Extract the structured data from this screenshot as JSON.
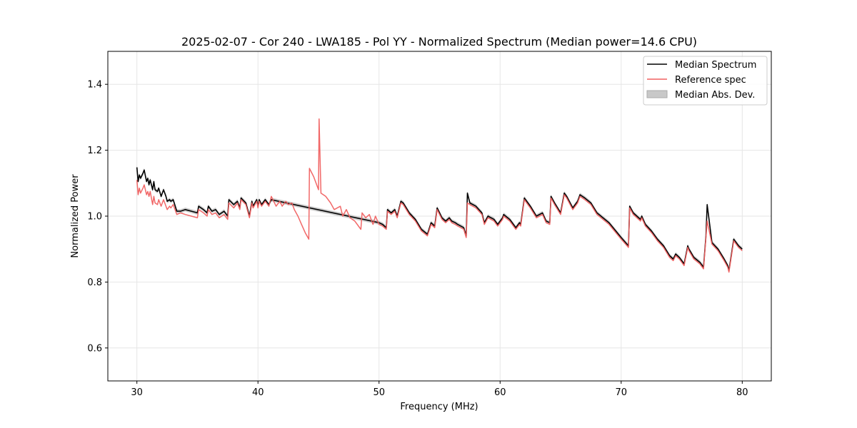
{
  "chart_data": {
    "type": "line",
    "title": "2025-02-07 - Cor 240 - LWA185 - Pol YY - Normalized Spectrum (Median power=14.6 CPU)",
    "xlabel": "Frequency (MHz)",
    "ylabel": "Normalized Power",
    "xlim": [
      27.6,
      82.4
    ],
    "ylim": [
      0.5,
      1.5
    ],
    "xticks": [
      30,
      40,
      50,
      60,
      70,
      80
    ],
    "yticks": [
      0.6,
      0.8,
      1.0,
      1.2,
      1.4
    ],
    "xtick_labels": [
      "30",
      "40",
      "50",
      "60",
      "70",
      "80"
    ],
    "ytick_labels": [
      "0.6",
      "0.8",
      "1.0",
      "1.2",
      "1.4"
    ],
    "grid": true,
    "legend_position": "top-right",
    "colors": {
      "median": "#000000",
      "reference": "#f06060",
      "mad": "#c8c8c8"
    },
    "series": [
      {
        "name": "Median Spectrum",
        "x": [
          30.0,
          30.1,
          30.2,
          30.3,
          30.5,
          30.6,
          30.8,
          30.9,
          31.0,
          31.1,
          31.3,
          31.4,
          31.5,
          31.7,
          31.8,
          32.0,
          32.2,
          32.4,
          32.5,
          32.7,
          32.8,
          33.0,
          33.3,
          33.6,
          34.0,
          34.5,
          35.0,
          35.1,
          35.5,
          35.8,
          35.9,
          36.2,
          36.5,
          36.8,
          37.2,
          37.5,
          37.6,
          38.0,
          38.3,
          38.5,
          38.6,
          39.0,
          39.3,
          39.5,
          39.6,
          39.9,
          40.0,
          40.1,
          40.3,
          40.6,
          40.9,
          41.1,
          50.0,
          50.3,
          50.6,
          50.7,
          51.0,
          51.3,
          51.5,
          51.8,
          52.0,
          52.5,
          53.0,
          53.5,
          54.0,
          54.3,
          54.6,
          54.8,
          55.0,
          55.2,
          55.5,
          55.8,
          56.0,
          56.3,
          56.5,
          57.0,
          57.2,
          57.3,
          57.5,
          58.0,
          58.5,
          58.7,
          59.0,
          59.5,
          59.8,
          60.2,
          60.3,
          60.8,
          61.0,
          61.3,
          61.6,
          61.7,
          62.0,
          62.5,
          63.0,
          63.5,
          63.8,
          64.1,
          64.2,
          64.5,
          65.0,
          65.3,
          65.5,
          66.0,
          66.4,
          66.6,
          67.0,
          67.5,
          68.0,
          69.0,
          70.0,
          70.6,
          70.7,
          71.0,
          71.3,
          71.6,
          71.7,
          72.0,
          72.5,
          73.0,
          73.5,
          74.0,
          74.3,
          74.5,
          74.8,
          75.0,
          75.2,
          75.5,
          75.6,
          76.0,
          76.5,
          76.8,
          77.0,
          77.1,
          77.5,
          78.0,
          78.5,
          78.8,
          78.9,
          79.3,
          79.7,
          80.0
        ],
        "values": [
          1.148,
          1.105,
          1.125,
          1.115,
          1.13,
          1.14,
          1.105,
          1.115,
          1.095,
          1.11,
          1.08,
          1.105,
          1.08,
          1.075,
          1.085,
          1.06,
          1.08,
          1.06,
          1.045,
          1.05,
          1.045,
          1.05,
          1.015,
          1.015,
          1.02,
          1.015,
          1.01,
          1.03,
          1.02,
          1.01,
          1.03,
          1.015,
          1.02,
          1.005,
          1.015,
          1.0,
          1.05,
          1.035,
          1.045,
          1.025,
          1.055,
          1.04,
          1.0,
          1.045,
          1.03,
          1.05,
          1.03,
          1.05,
          1.035,
          1.05,
          1.035,
          1.05,
          0.98,
          0.975,
          0.965,
          1.02,
          1.01,
          1.02,
          1.0,
          1.045,
          1.04,
          1.01,
          0.99,
          0.96,
          0.945,
          0.98,
          0.97,
          1.025,
          1.01,
          0.995,
          0.985,
          0.995,
          0.985,
          0.98,
          0.975,
          0.965,
          0.94,
          1.07,
          1.04,
          1.03,
          1.01,
          0.98,
          1.0,
          0.99,
          0.975,
          0.995,
          1.005,
          0.99,
          0.98,
          0.965,
          0.98,
          0.975,
          1.055,
          1.03,
          1.0,
          1.01,
          0.985,
          0.98,
          1.06,
          1.04,
          1.01,
          1.07,
          1.06,
          1.025,
          1.045,
          1.065,
          1.055,
          1.04,
          1.01,
          0.98,
          0.935,
          0.91,
          1.03,
          1.01,
          1.0,
          0.99,
          1.0,
          0.975,
          0.955,
          0.93,
          0.91,
          0.88,
          0.87,
          0.885,
          0.875,
          0.865,
          0.855,
          0.91,
          0.9,
          0.875,
          0.86,
          0.845,
          0.94,
          1.035,
          0.92,
          0.9,
          0.87,
          0.85,
          0.835,
          0.93,
          0.91,
          0.9
        ]
      },
      {
        "name": "Reference spec",
        "x": [
          30.0,
          30.1,
          30.2,
          30.3,
          30.5,
          30.6,
          30.8,
          30.9,
          31.0,
          31.1,
          31.3,
          31.4,
          31.5,
          31.7,
          31.8,
          32.0,
          32.2,
          32.4,
          32.5,
          32.7,
          32.8,
          33.0,
          33.3,
          33.6,
          34.0,
          34.5,
          35.0,
          35.1,
          35.5,
          35.8,
          35.9,
          36.2,
          36.5,
          36.8,
          37.2,
          37.5,
          37.6,
          38.0,
          38.3,
          38.5,
          38.6,
          39.0,
          39.3,
          39.5,
          39.6,
          39.9,
          40.0,
          40.1,
          40.3,
          40.6,
          40.9,
          41.1,
          41.5,
          41.8,
          42.0,
          42.3,
          42.5,
          42.8,
          43.0,
          43.3,
          43.6,
          43.9,
          44.2,
          44.25,
          44.6,
          44.9,
          45.0,
          45.05,
          45.2,
          45.6,
          46.0,
          46.3,
          46.8,
          47.0,
          47.3,
          47.6,
          48.0,
          48.5,
          48.6,
          48.9,
          49.2,
          49.5,
          49.7,
          50.0,
          50.3,
          50.6,
          50.7,
          51.0,
          51.3,
          51.5,
          51.8,
          52.0,
          52.5,
          53.0,
          53.5,
          54.0,
          54.3,
          54.6,
          54.8,
          55.0,
          55.2,
          55.5,
          55.8,
          56.0,
          56.3,
          56.5,
          57.0,
          57.2,
          57.3,
          57.5,
          58.0,
          58.5,
          58.7,
          59.0,
          59.5,
          59.8,
          60.2,
          60.3,
          60.8,
          61.0,
          61.3,
          61.6,
          61.7,
          62.0,
          62.5,
          63.0,
          63.5,
          63.8,
          64.1,
          64.2,
          64.5,
          65.0,
          65.3,
          65.5,
          66.0,
          66.4,
          66.6,
          67.0,
          67.5,
          68.0,
          69.0,
          70.0,
          70.6,
          70.7,
          71.0,
          71.3,
          71.6,
          71.7,
          72.0,
          72.5,
          73.0,
          73.5,
          74.0,
          74.3,
          74.5,
          74.8,
          75.0,
          75.2,
          75.5,
          75.6,
          76.0,
          76.5,
          76.8,
          77.0,
          77.1,
          77.5,
          78.0,
          78.5,
          78.8,
          78.9,
          79.3,
          79.7,
          80.0
        ],
        "values": [
          1.11,
          1.065,
          1.085,
          1.07,
          1.085,
          1.095,
          1.065,
          1.075,
          1.06,
          1.075,
          1.035,
          1.06,
          1.04,
          1.035,
          1.05,
          1.03,
          1.05,
          1.03,
          1.02,
          1.03,
          1.025,
          1.035,
          1.005,
          1.01,
          1.005,
          1.0,
          0.995,
          1.02,
          1.01,
          1.0,
          1.02,
          1.005,
          1.01,
          0.995,
          1.005,
          0.99,
          1.04,
          1.025,
          1.04,
          1.02,
          1.05,
          1.035,
          0.995,
          1.04,
          1.025,
          1.045,
          1.025,
          1.045,
          1.03,
          1.045,
          1.03,
          1.06,
          1.03,
          1.045,
          1.03,
          1.045,
          1.035,
          1.04,
          1.02,
          1.0,
          0.975,
          0.95,
          0.93,
          1.145,
          1.12,
          1.09,
          1.08,
          1.295,
          1.07,
          1.06,
          1.04,
          1.02,
          1.03,
          1.0,
          1.02,
          0.995,
          0.985,
          0.96,
          1.01,
          0.995,
          1.005,
          0.975,
          1.0,
          0.975,
          0.97,
          0.96,
          1.015,
          1.005,
          1.015,
          0.995,
          1.04,
          1.035,
          1.005,
          0.985,
          0.955,
          0.94,
          0.975,
          0.965,
          1.02,
          1.005,
          0.99,
          0.98,
          0.99,
          0.98,
          0.975,
          0.97,
          0.96,
          0.935,
          1.04,
          1.035,
          1.025,
          1.005,
          0.975,
          0.995,
          0.985,
          0.97,
          0.99,
          1.0,
          0.985,
          0.975,
          0.96,
          0.975,
          0.97,
          1.05,
          1.025,
          0.995,
          1.005,
          0.98,
          0.975,
          1.055,
          1.035,
          1.005,
          1.065,
          1.055,
          1.02,
          1.04,
          1.06,
          1.05,
          1.035,
          1.005,
          0.975,
          0.93,
          0.905,
          1.025,
          1.005,
          0.995,
          0.985,
          0.995,
          0.97,
          0.95,
          0.925,
          0.905,
          0.875,
          0.865,
          0.88,
          0.87,
          0.86,
          0.85,
          0.905,
          0.895,
          0.87,
          0.855,
          0.84,
          0.935,
          0.985,
          0.915,
          0.895,
          0.865,
          0.845,
          0.83,
          0.925,
          0.905,
          0.895
        ]
      }
    ],
    "mad_band": {
      "name": "Median Abs. Dev.",
      "halfwidth": 0.006
    },
    "legend": [
      "Median Spectrum",
      "Reference spec",
      "Median Abs. Dev."
    ]
  }
}
